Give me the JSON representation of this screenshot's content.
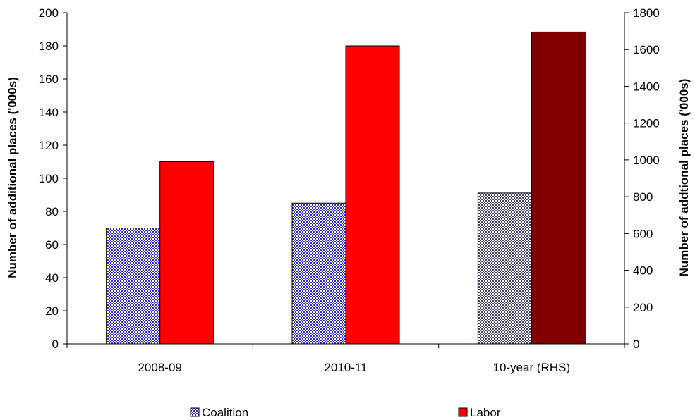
{
  "chart_data": {
    "type": "bar",
    "categories": [
      "2008-09",
      "2010-11",
      "10-year (RHS)"
    ],
    "series": [
      {
        "name": "Coalition",
        "values": [
          70,
          85,
          820
        ],
        "axis": [
          "left",
          "left",
          "right"
        ],
        "pattern": "checker",
        "color": "#3030c0"
      },
      {
        "name": "Labor",
        "values": [
          110,
          180,
          1695
        ],
        "axis": [
          "left",
          "left",
          "right"
        ],
        "colors": [
          "#ff0000",
          "#ff0000",
          "#800000"
        ]
      }
    ],
    "ylabel": "Number of additional places ('000s)",
    "y2label": "Number of addtional places ('000s)",
    "ylim": [
      0,
      200
    ],
    "y2lim": [
      0,
      1800
    ],
    "yticks": [
      0,
      20,
      40,
      60,
      80,
      100,
      120,
      140,
      160,
      180,
      200
    ],
    "y2ticks": [
      0,
      200,
      400,
      600,
      800,
      1000,
      1200,
      1400,
      1600,
      1800
    ],
    "legend_position": "bottom",
    "grid": false
  }
}
